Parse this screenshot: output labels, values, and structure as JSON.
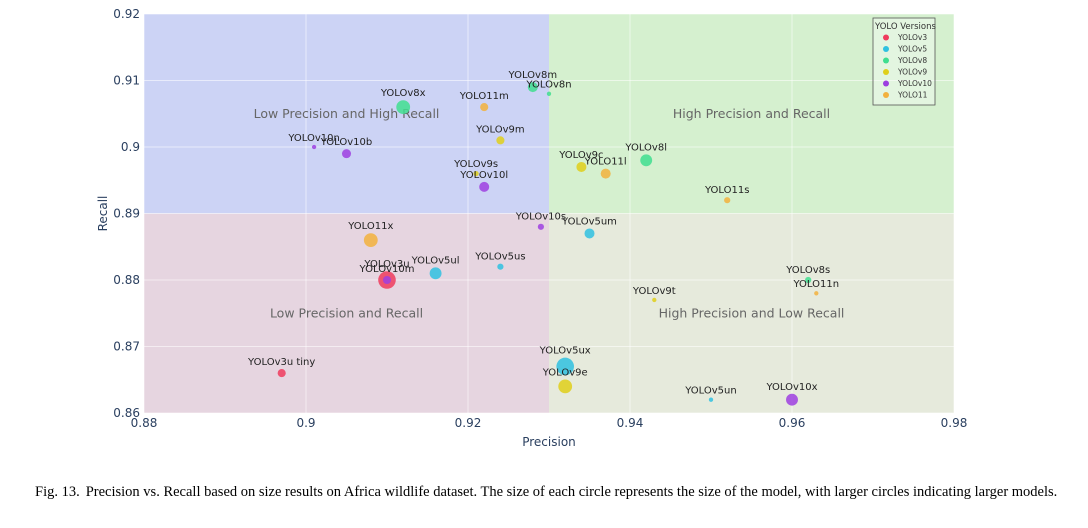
{
  "chart_data": {
    "type": "scatter",
    "xlabel": "Precision",
    "ylabel": "Recall",
    "xlim": [
      0.88,
      0.98
    ],
    "ylim": [
      0.86,
      0.92
    ],
    "x_ticks": [
      "0.88",
      "0.9",
      "0.92",
      "0.94",
      "0.96",
      "0.98"
    ],
    "y_ticks": [
      "0.86",
      "0.87",
      "0.88",
      "0.89",
      "0.9",
      "0.91",
      "0.92"
    ],
    "grid": true,
    "thresholds": {
      "precision": 0.93,
      "recall": 0.89
    },
    "quadrants": [
      {
        "label": "Low Precision and High Recall",
        "x": [
          0.88,
          0.93
        ],
        "y": [
          0.89,
          0.92
        ],
        "color": "#ccd3f5"
      },
      {
        "label": "High Precision and Recall",
        "x": [
          0.93,
          0.98
        ],
        "y": [
          0.89,
          0.92
        ],
        "color": "#d5f0cf"
      },
      {
        "label": "Low Precision and Recall",
        "x": [
          0.88,
          0.93
        ],
        "y": [
          0.86,
          0.89
        ],
        "color": "#e6d5e0"
      },
      {
        "label": "High Precision and Low Recall",
        "x": [
          0.93,
          0.98
        ],
        "y": [
          0.86,
          0.89
        ],
        "color": "#e6eadc"
      }
    ],
    "legend": {
      "title": "YOLO Versions",
      "placement": "top-right",
      "entries": [
        {
          "name": "YOLOv3",
          "color": "#ef3b5d"
        },
        {
          "name": "YOLOv5",
          "color": "#2fc1e0"
        },
        {
          "name": "YOLOv8",
          "color": "#3fde8f"
        },
        {
          "name": "YOLOv9",
          "color": "#dfcf1a"
        },
        {
          "name": "YOLOv10",
          "color": "#9d3fe0"
        },
        {
          "name": "YOLO11",
          "color": "#f2b13d"
        }
      ]
    },
    "series": [
      {
        "name": "YOLOv3",
        "color": "#ef3b5d",
        "points": [
          {
            "label": "YOLOv3u",
            "x": 0.91,
            "y": 0.88,
            "size": 8
          },
          {
            "label": "YOLOv3u tiny",
            "x": 0.897,
            "y": 0.866,
            "size": 3
          }
        ]
      },
      {
        "name": "YOLOv5",
        "color": "#2fc1e0",
        "points": [
          {
            "label": "YOLOv5ux",
            "x": 0.932,
            "y": 0.867,
            "size": 8
          },
          {
            "label": "YOLOv5ul",
            "x": 0.916,
            "y": 0.881,
            "size": 5
          },
          {
            "label": "YOLOv5um",
            "x": 0.935,
            "y": 0.887,
            "size": 4
          },
          {
            "label": "YOLOv5us",
            "x": 0.924,
            "y": 0.882,
            "size": 2
          },
          {
            "label": "YOLOv5un",
            "x": 0.95,
            "y": 0.862,
            "size": 1
          }
        ]
      },
      {
        "name": "YOLOv8",
        "color": "#3fde8f",
        "points": [
          {
            "label": "YOLOv8x",
            "x": 0.912,
            "y": 0.906,
            "size": 6
          },
          {
            "label": "YOLOv8l",
            "x": 0.942,
            "y": 0.898,
            "size": 5
          },
          {
            "label": "YOLOv8m",
            "x": 0.928,
            "y": 0.909,
            "size": 4
          },
          {
            "label": "YOLOv8s",
            "x": 0.962,
            "y": 0.88,
            "size": 2
          },
          {
            "label": "YOLOv8n",
            "x": 0.93,
            "y": 0.908,
            "size": 1
          }
        ]
      },
      {
        "name": "YOLOv9",
        "color": "#dfcf1a",
        "points": [
          {
            "label": "YOLOv9e",
            "x": 0.932,
            "y": 0.864,
            "size": 6
          },
          {
            "label": "YOLOv9c",
            "x": 0.934,
            "y": 0.897,
            "size": 4
          },
          {
            "label": "YOLOv9m",
            "x": 0.924,
            "y": 0.901,
            "size": 3
          },
          {
            "label": "YOLOv9s",
            "x": 0.921,
            "y": 0.896,
            "size": 1.5
          },
          {
            "label": "YOLOv9t",
            "x": 0.943,
            "y": 0.877,
            "size": 1
          }
        ]
      },
      {
        "name": "YOLOv10",
        "color": "#9d3fe0",
        "points": [
          {
            "label": "YOLOv10x",
            "x": 0.96,
            "y": 0.862,
            "size": 5
          },
          {
            "label": "YOLOv10l",
            "x": 0.922,
            "y": 0.894,
            "size": 4
          },
          {
            "label": "YOLOv10b",
            "x": 0.905,
            "y": 0.899,
            "size": 3.5
          },
          {
            "label": "YOLOv10m",
            "x": 0.91,
            "y": 0.88,
            "size": 3
          },
          {
            "label": "YOLOv10s",
            "x": 0.929,
            "y": 0.888,
            "size": 2
          },
          {
            "label": "YOLOv10n",
            "x": 0.901,
            "y": 0.9,
            "size": 1
          }
        ]
      },
      {
        "name": "YOLO11",
        "color": "#f2b13d",
        "points": [
          {
            "label": "YOLO11x",
            "x": 0.908,
            "y": 0.886,
            "size": 6
          },
          {
            "label": "YOLO11l",
            "x": 0.937,
            "y": 0.896,
            "size": 4
          },
          {
            "label": "YOLO11m",
            "x": 0.922,
            "y": 0.906,
            "size": 3
          },
          {
            "label": "YOLO11s",
            "x": 0.952,
            "y": 0.892,
            "size": 2
          },
          {
            "label": "YOLO11n",
            "x": 0.963,
            "y": 0.878,
            "size": 1
          }
        ]
      }
    ]
  },
  "caption": {
    "label": "Fig. 13.",
    "text": "Precision vs. Recall based on size results on Africa wildlife dataset. The size of each circle represents the size of the model, with larger circles indicating larger models."
  }
}
